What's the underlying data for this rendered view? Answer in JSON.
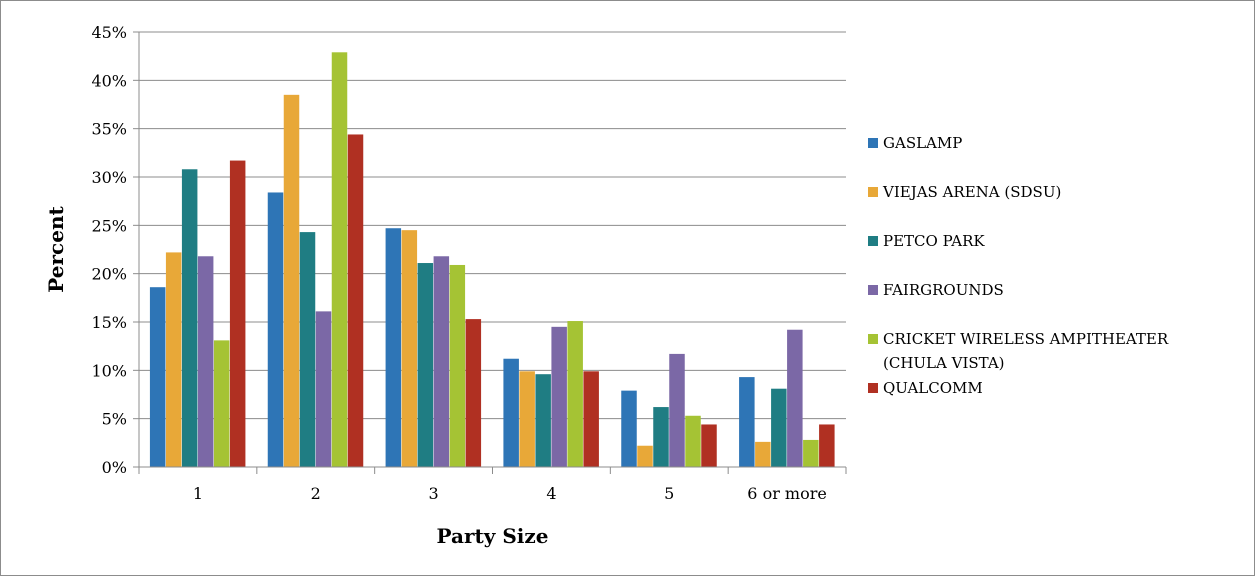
{
  "chart_data": {
    "type": "bar",
    "xlabel": "Party Size",
    "ylabel": "Percent",
    "categories": [
      "1",
      "2",
      "3",
      "4",
      "5",
      "6 or more"
    ],
    "yticks": [
      "0%",
      "5%",
      "10%",
      "15%",
      "20%",
      "25%",
      "30%",
      "35%",
      "40%",
      "45%"
    ],
    "ylim": [
      0,
      45
    ],
    "grid": true,
    "legend_position": "right",
    "series": [
      {
        "name": "GASLAMP",
        "legend_lines": [
          "GASLAMP"
        ],
        "color": "#2E75B6",
        "values": [
          18.6,
          28.4,
          24.7,
          11.2,
          7.9,
          9.3
        ]
      },
      {
        "name": "VIEJAS ARENA (SDSU)",
        "legend_lines": [
          "VIEJAS ARENA (SDSU)"
        ],
        "color": "#E8A838",
        "values": [
          22.2,
          38.5,
          24.5,
          9.9,
          2.2,
          2.6
        ]
      },
      {
        "name": "PETCO PARK",
        "legend_lines": [
          "PETCO PARK"
        ],
        "color": "#1F7D83",
        "values": [
          30.8,
          24.3,
          21.1,
          9.6,
          6.2,
          8.1
        ]
      },
      {
        "name": "FAIRGROUNDS",
        "legend_lines": [
          "FAIRGROUNDS"
        ],
        "color": "#7B68A6",
        "values": [
          21.8,
          16.1,
          21.8,
          14.5,
          11.7,
          14.2
        ]
      },
      {
        "name": "CRICKET WIRELESS AMPITHEATER (CHULA VISTA)",
        "legend_lines": [
          "CRICKET WIRELESS AMPITHEATER",
          "(CHULA VISTA)"
        ],
        "color": "#A5C334",
        "values": [
          13.1,
          42.9,
          20.9,
          15.1,
          5.3,
          2.8
        ]
      },
      {
        "name": "QUALCOMM",
        "legend_lines": [
          "QUALCOMM"
        ],
        "color": "#B03022",
        "values": [
          31.7,
          34.4,
          15.3,
          9.9,
          4.4,
          4.4
        ]
      }
    ]
  }
}
